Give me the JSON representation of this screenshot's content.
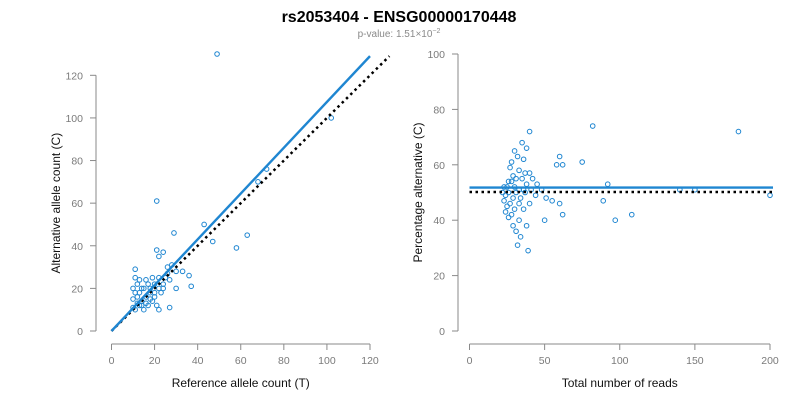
{
  "title": "rs2053404 - ENSG00000170448",
  "subtitle": {
    "prefix": "p-value: 1.51",
    "times": "×10",
    "exponent": "−2"
  },
  "colors": {
    "points": "#1f86d1",
    "fit_line": "#1f86d1",
    "reference_line": "#000000",
    "axes": "#8a8a8a",
    "tick_labels": "#7a7a7a"
  },
  "chart_data": [
    {
      "type": "scatter",
      "xlabel": "Reference allele count (T)",
      "ylabel": "Alternative allele count (C)",
      "xlim": [
        0,
        120
      ],
      "ylim": [
        0,
        130
      ],
      "xticks": [
        0,
        20,
        40,
        60,
        80,
        100,
        120
      ],
      "yticks": [
        0,
        20,
        40,
        60,
        80,
        100,
        120
      ],
      "grid": false,
      "fit_line": {
        "style": "solid",
        "x": [
          0,
          120
        ],
        "y": [
          0,
          129
        ]
      },
      "reference_line": {
        "style": "dotted",
        "x": [
          0,
          129
        ],
        "y": [
          0,
          129
        ]
      },
      "points": [
        [
          49,
          130
        ],
        [
          102,
          100
        ],
        [
          21,
          61
        ],
        [
          68,
          70
        ],
        [
          72,
          76
        ],
        [
          29,
          46
        ],
        [
          43,
          50
        ],
        [
          47,
          42
        ],
        [
          58,
          39
        ],
        [
          63,
          45
        ],
        [
          21,
          38
        ],
        [
          24,
          37
        ],
        [
          22,
          35
        ],
        [
          26,
          30
        ],
        [
          30,
          28
        ],
        [
          33,
          28
        ],
        [
          36,
          26
        ],
        [
          37,
          21
        ],
        [
          30,
          20
        ],
        [
          27,
          11
        ],
        [
          21,
          12
        ],
        [
          22,
          10
        ],
        [
          11,
          29
        ],
        [
          11,
          25
        ],
        [
          12,
          22
        ],
        [
          16,
          24
        ],
        [
          14,
          20
        ],
        [
          18,
          20
        ],
        [
          20,
          22
        ],
        [
          22,
          20
        ],
        [
          24,
          22
        ],
        [
          25,
          25
        ],
        [
          27,
          24
        ],
        [
          23,
          18
        ],
        [
          20,
          16
        ],
        [
          18,
          18
        ],
        [
          16,
          16
        ],
        [
          14,
          14
        ],
        [
          13,
          12
        ],
        [
          11,
          10
        ],
        [
          10,
          11
        ],
        [
          12,
          16
        ],
        [
          15,
          10
        ],
        [
          17,
          12
        ],
        [
          19,
          14
        ],
        [
          11,
          18
        ],
        [
          13,
          18
        ],
        [
          15,
          20
        ],
        [
          10,
          15
        ],
        [
          12,
          13
        ],
        [
          14,
          12
        ],
        [
          16,
          13
        ],
        [
          18,
          15
        ],
        [
          20,
          18
        ],
        [
          24,
          20
        ],
        [
          26,
          27
        ],
        [
          17,
          22
        ],
        [
          19,
          25
        ],
        [
          13,
          24
        ],
        [
          10,
          20
        ],
        [
          22,
          25
        ],
        [
          28,
          31
        ]
      ]
    },
    {
      "type": "scatter",
      "xlabel": "Total number of reads",
      "ylabel": "Percentage alternative (C)",
      "xlim": [
        0,
        200
      ],
      "ylim": [
        0,
        100
      ],
      "xticks": [
        0,
        50,
        100,
        150,
        200
      ],
      "yticks": [
        0,
        20,
        40,
        60,
        80,
        100
      ],
      "grid": false,
      "fit_line": {
        "style": "solid",
        "x": [
          0,
          202
        ],
        "y": [
          51.8,
          51.8
        ]
      },
      "reference_line": {
        "style": "dotted",
        "x": [
          0,
          202
        ],
        "y": [
          50.2,
          50.2
        ]
      },
      "points": [
        [
          179,
          72
        ],
        [
          82,
          74
        ],
        [
          40,
          72
        ],
        [
          75,
          61
        ],
        [
          35,
          68
        ],
        [
          38,
          66
        ],
        [
          30,
          65
        ],
        [
          32,
          63
        ],
        [
          36,
          62
        ],
        [
          28,
          61
        ],
        [
          27,
          59
        ],
        [
          60,
          63
        ],
        [
          58,
          60
        ],
        [
          62,
          60
        ],
        [
          33,
          58
        ],
        [
          37,
          57
        ],
        [
          40,
          57
        ],
        [
          29,
          56
        ],
        [
          31,
          55
        ],
        [
          35,
          55
        ],
        [
          42,
          55
        ],
        [
          26,
          54
        ],
        [
          28,
          54
        ],
        [
          38,
          53
        ],
        [
          45,
          53
        ],
        [
          92,
          53
        ],
        [
          23,
          52
        ],
        [
          25,
          52
        ],
        [
          30,
          52
        ],
        [
          33,
          51
        ],
        [
          36,
          51
        ],
        [
          41,
          51
        ],
        [
          48,
          51
        ],
        [
          140,
          51
        ],
        [
          150,
          51
        ],
        [
          22,
          50
        ],
        [
          26,
          50
        ],
        [
          31,
          50
        ],
        [
          37,
          50
        ],
        [
          44,
          49
        ],
        [
          200,
          49
        ],
        [
          24,
          49
        ],
        [
          29,
          48
        ],
        [
          34,
          48
        ],
        [
          51,
          48
        ],
        [
          55,
          47
        ],
        [
          89,
          47
        ],
        [
          23,
          47
        ],
        [
          27,
          46
        ],
        [
          33,
          46
        ],
        [
          40,
          46
        ],
        [
          60,
          46
        ],
        [
          25,
          45
        ],
        [
          30,
          44
        ],
        [
          36,
          44
        ],
        [
          24,
          43
        ],
        [
          28,
          42
        ],
        [
          62,
          42
        ],
        [
          108,
          42
        ],
        [
          26,
          41
        ],
        [
          33,
          40
        ],
        [
          50,
          40
        ],
        [
          97,
          40
        ],
        [
          29,
          38
        ],
        [
          38,
          38
        ],
        [
          31,
          36
        ],
        [
          34,
          34
        ],
        [
          32,
          31
        ],
        [
          39,
          29
        ]
      ]
    }
  ]
}
